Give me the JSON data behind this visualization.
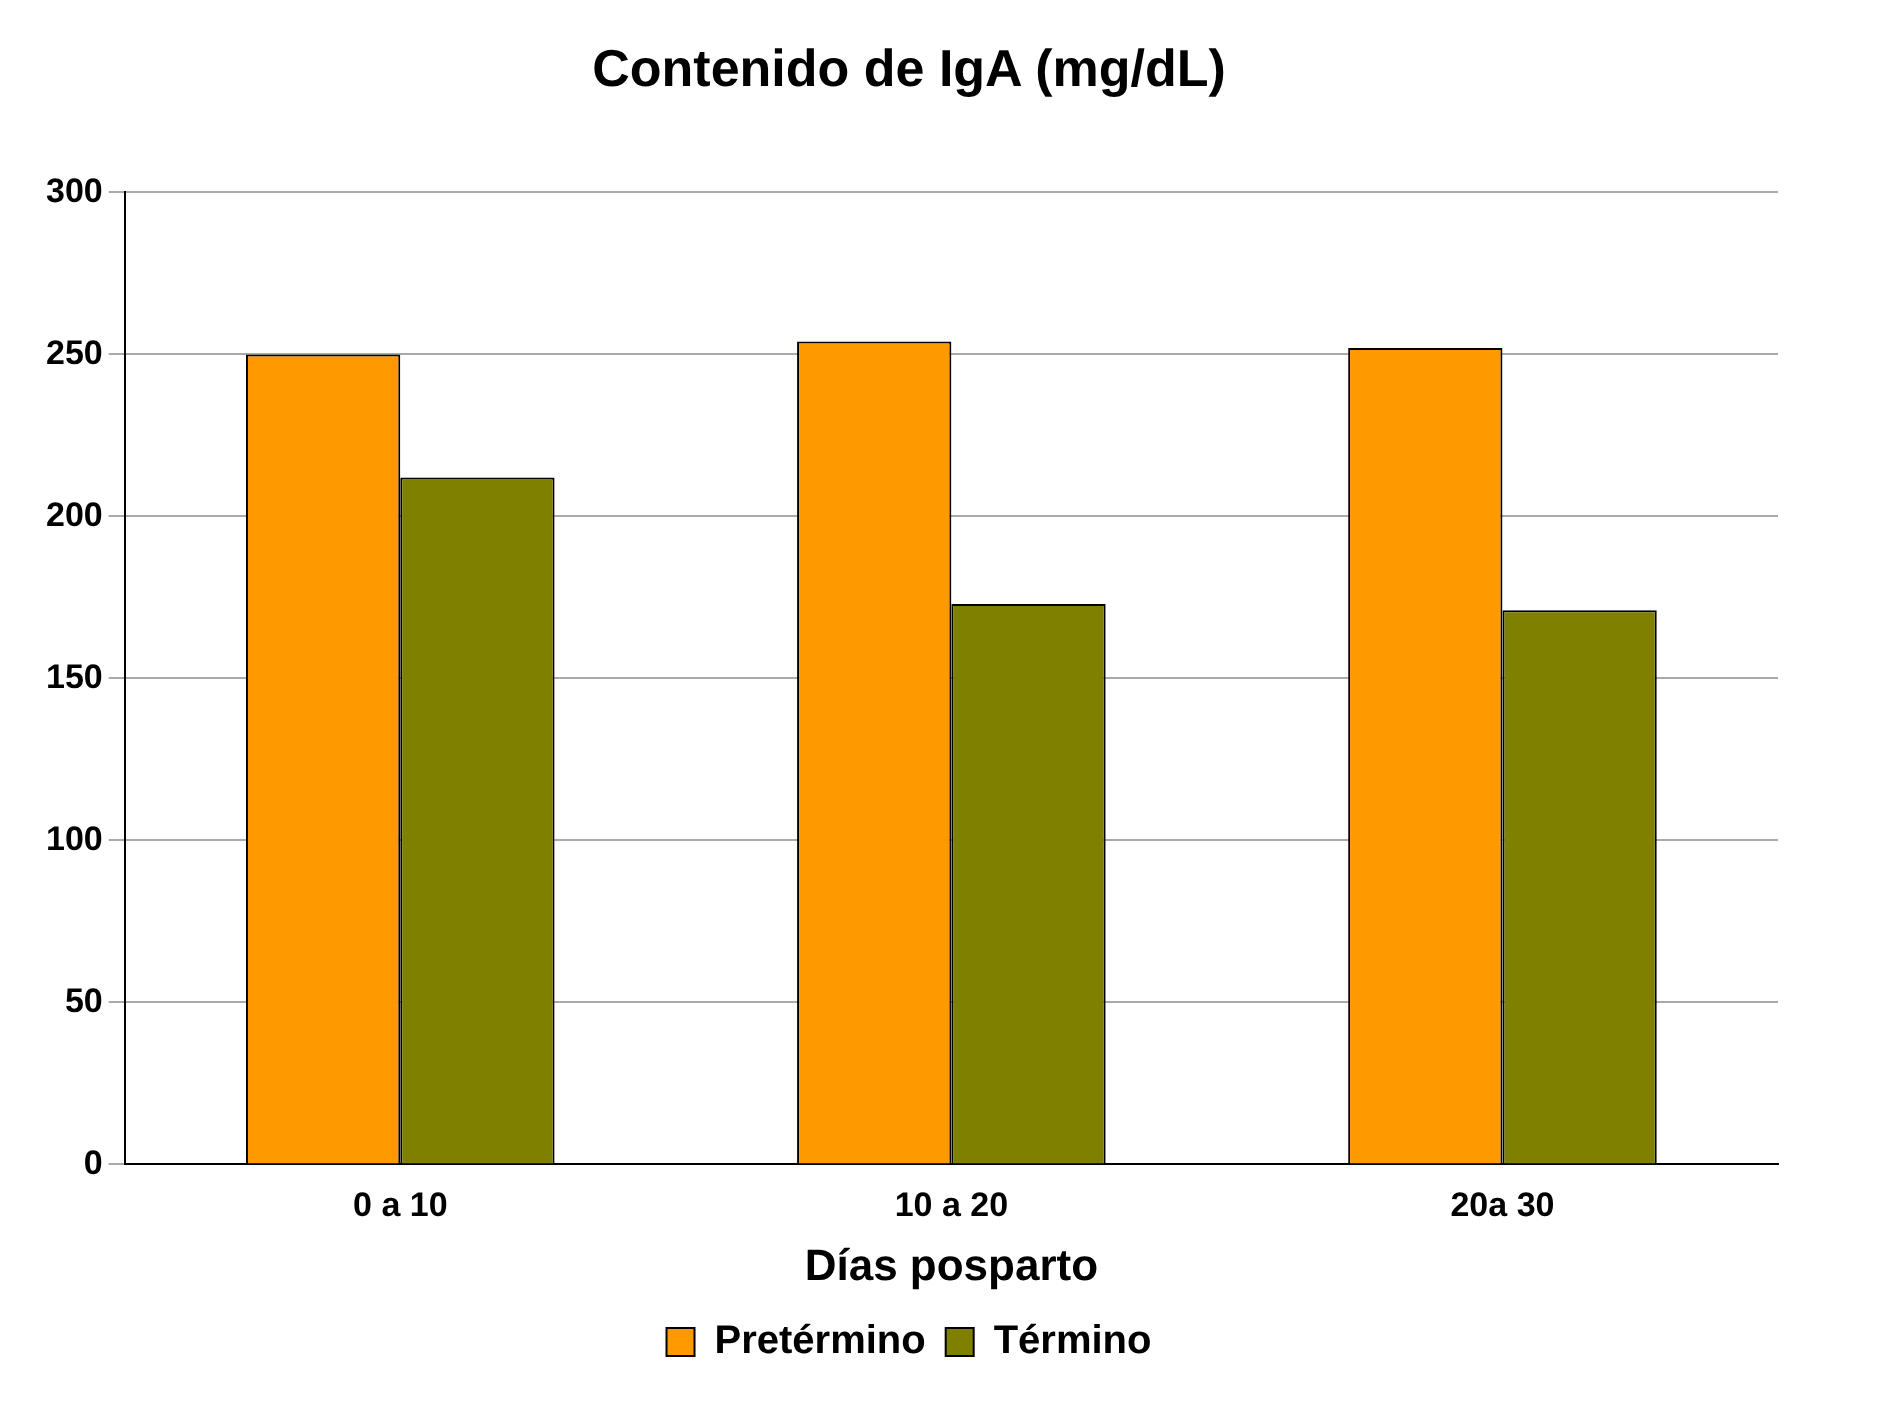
{
  "chart_data": {
    "type": "bar",
    "title": "Contenido de IgA (mg/dL)",
    "xlabel": "Días posparto",
    "categories": [
      "0 a 10",
      "10 a 20",
      "20a 30"
    ],
    "series": [
      {
        "name": "Pretérmino",
        "color": "#ff9900",
        "values": [
          250,
          254,
          252
        ]
      },
      {
        "name": "Término",
        "color": "#808000",
        "values": [
          212,
          173,
          171
        ]
      }
    ],
    "ylim": [
      0,
      300
    ],
    "yticks": [
      0,
      50,
      100,
      150,
      200,
      250,
      300
    ],
    "grid": "y",
    "legend": "bottom"
  }
}
